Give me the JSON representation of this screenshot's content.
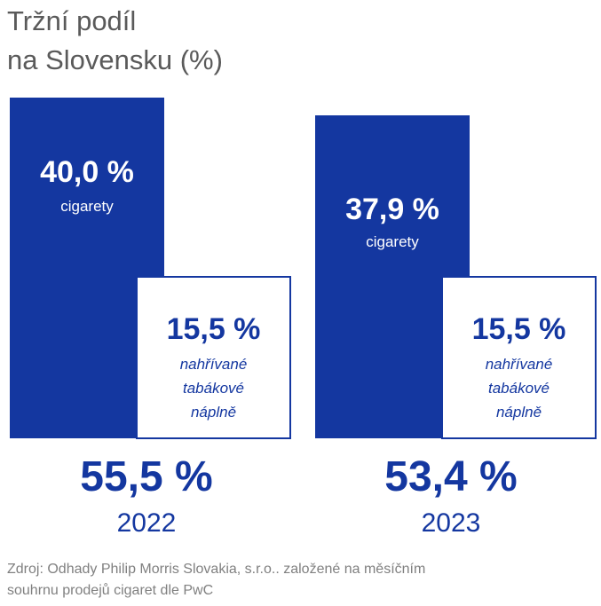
{
  "title_lines": [
    "Tržní podíl",
    "na Slovensku (%)"
  ],
  "colors": {
    "primary_blue": "#1437a0",
    "title_gray": "#5a5a5a",
    "source_gray": "#808080"
  },
  "chart_data": {
    "type": "bar",
    "title": "Tržní podíl na Slovensku (%)",
    "categories": [
      "2022",
      "2023"
    ],
    "series": [
      {
        "name": "cigarety",
        "values": [
          40.0,
          37.9
        ],
        "labels": [
          "40,0 %",
          "37,9 %"
        ]
      },
      {
        "name": "nahřívané tabákové náplně",
        "values": [
          15.5,
          15.5
        ],
        "labels": [
          "15,5 %",
          "15,5 %"
        ]
      }
    ],
    "totals": [
      55.5,
      53.4
    ],
    "total_labels": [
      "55,5 %",
      "53,4 %"
    ]
  },
  "groups": [
    {
      "cig_value": "40,0 %",
      "cig_label": "cigarety",
      "heat_value": "15,5 %",
      "heat_label_lines": [
        "nahřívané",
        "tabákové",
        "náplně"
      ],
      "total": "55,5 %",
      "year": "2022"
    },
    {
      "cig_value": "37,9 %",
      "cig_label": "cigarety",
      "heat_value": "15,5 %",
      "heat_label_lines": [
        "nahřívané",
        "tabákové",
        "náplně"
      ],
      "total": "53,4 %",
      "year": "2023"
    }
  ],
  "source_lines": [
    "Zdroj: Odhady Philip Morris Slovakia, s.r.o.. založené na měsíčním",
    "souhrnu prodejů cigaret dle PwC"
  ]
}
